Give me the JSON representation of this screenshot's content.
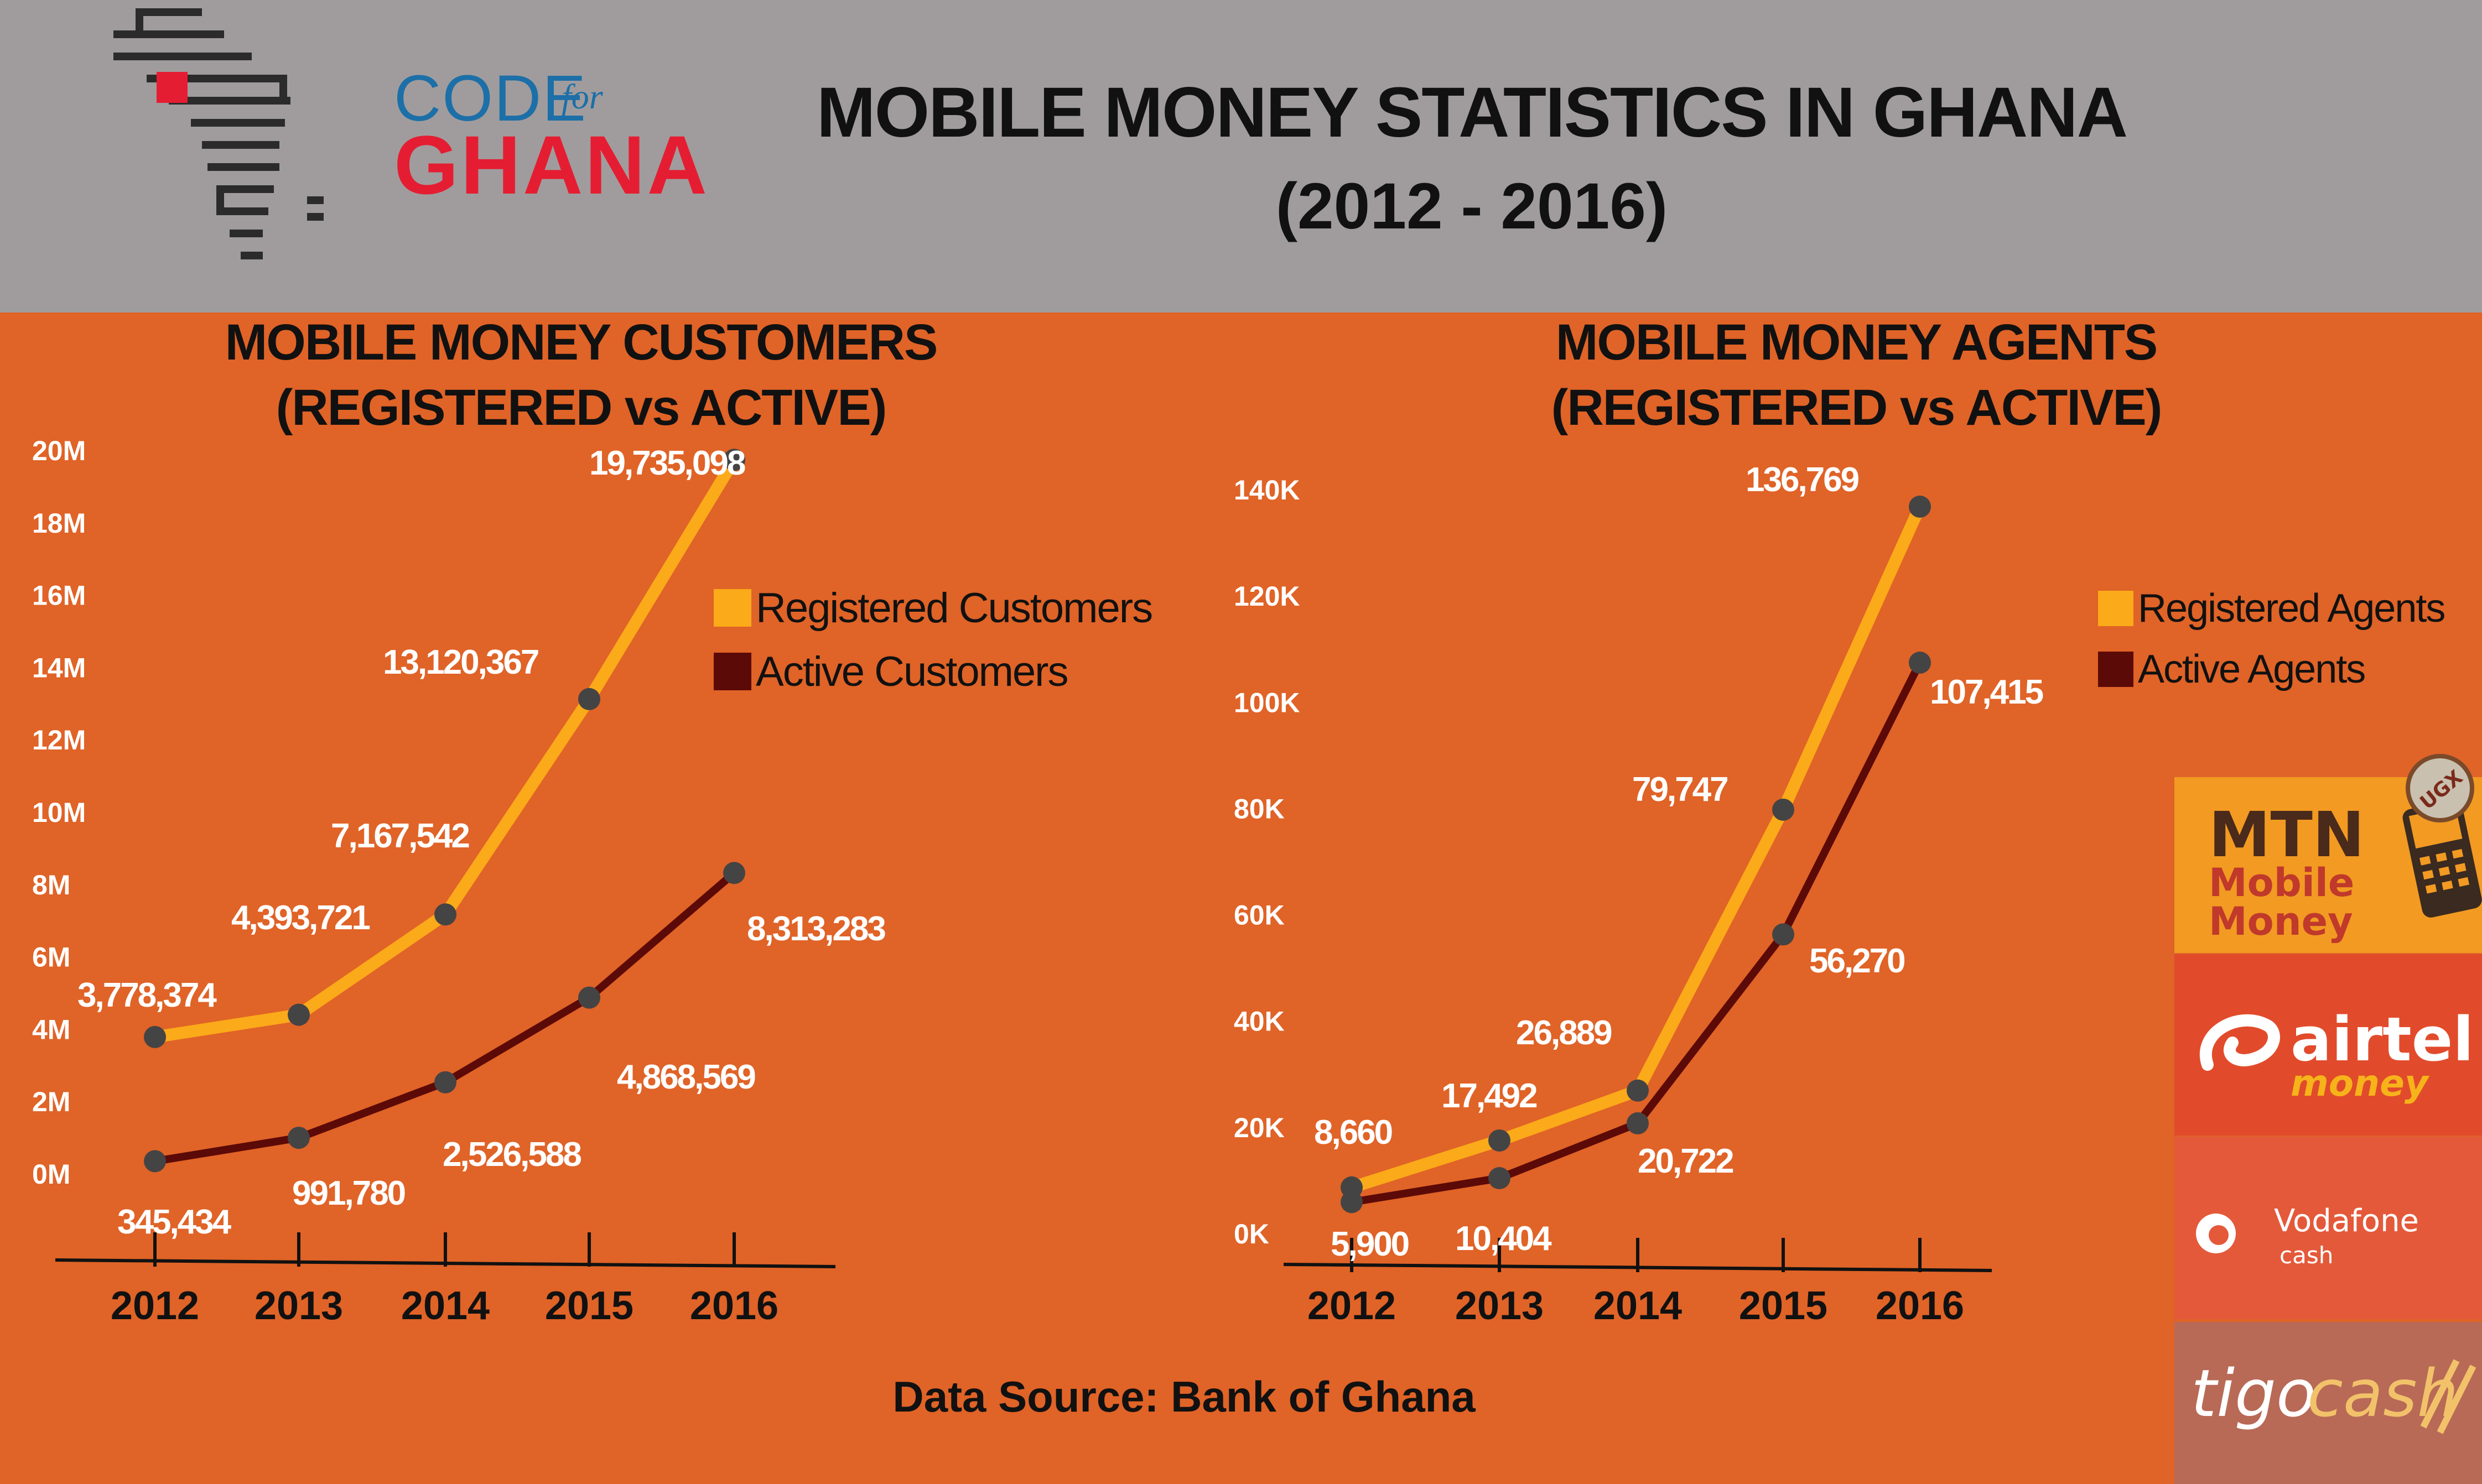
{
  "header": {
    "logo_code": "CODE",
    "logo_for": "for",
    "logo_ghana": "GHANA",
    "title": "MOBILE MONEY STATISTICS IN GHANA",
    "subtitle": "(2012 - 2016)"
  },
  "chart_data": [
    {
      "type": "line",
      "title_line1": "MOBILE MONEY CUSTOMERS",
      "title_line2": "(REGISTERED vs ACTIVE)",
      "x": [
        "2012",
        "2013",
        "2014",
        "2015",
        "2016"
      ],
      "y_ticks": [
        "0M",
        "2M",
        "4M",
        "6M",
        "8M",
        "10M",
        "12M",
        "14M",
        "16M",
        "18M",
        "20M"
      ],
      "ylim": [
        0,
        20000000
      ],
      "legend_position": "right",
      "series": [
        {
          "name": "Registered Customers",
          "color": "#fbaa19",
          "values": [
            3778374,
            4393721,
            7167542,
            13120367,
            19735098
          ],
          "labels": [
            "3,778,374",
            "4,393,721",
            "7,167,542",
            "13,120,367",
            "19,735,098"
          ]
        },
        {
          "name": "Active Customers",
          "color": "#5c0a07",
          "values": [
            345434,
            991780,
            2526588,
            4868569,
            8313283
          ],
          "labels": [
            "345,434",
            "991,780",
            "2,526,588",
            "4,868,569",
            "8,313,283"
          ]
        }
      ]
    },
    {
      "type": "line",
      "title_line1": "MOBILE MONEY AGENTS",
      "title_line2": "(REGISTERED vs ACTIVE)",
      "x": [
        "2012",
        "2013",
        "2014",
        "2015",
        "2016"
      ],
      "y_ticks": [
        "0K",
        "20K",
        "40K",
        "60K",
        "80K",
        "100K",
        "120K",
        "140K"
      ],
      "ylim": [
        0,
        140000
      ],
      "legend_position": "right",
      "series": [
        {
          "name": "Registered Agents",
          "color": "#fbaa19",
          "values": [
            8660,
            17492,
            26889,
            79747,
            136769
          ],
          "labels": [
            "8,660",
            "17,492",
            "26,889",
            "79,747",
            "136,769"
          ]
        },
        {
          "name": "Active Agents",
          "color": "#5c0a07",
          "values": [
            5900,
            10404,
            20722,
            56270,
            107415
          ],
          "labels": [
            "5,900",
            "10,404",
            "20,722",
            "56,270",
            "107,415"
          ]
        }
      ]
    }
  ],
  "source": "Data Source: Bank of Ghana",
  "brands": {
    "mtn": {
      "name": "MTN",
      "line1": "Mobile",
      "line2": "Money",
      "badge": "UGX"
    },
    "airtel": {
      "name": "airtel",
      "sub": "money"
    },
    "vodafone": {
      "name": "Vodafone",
      "sub": "cash"
    },
    "tigo": {
      "name": "tigo",
      "sub": "cash"
    }
  }
}
